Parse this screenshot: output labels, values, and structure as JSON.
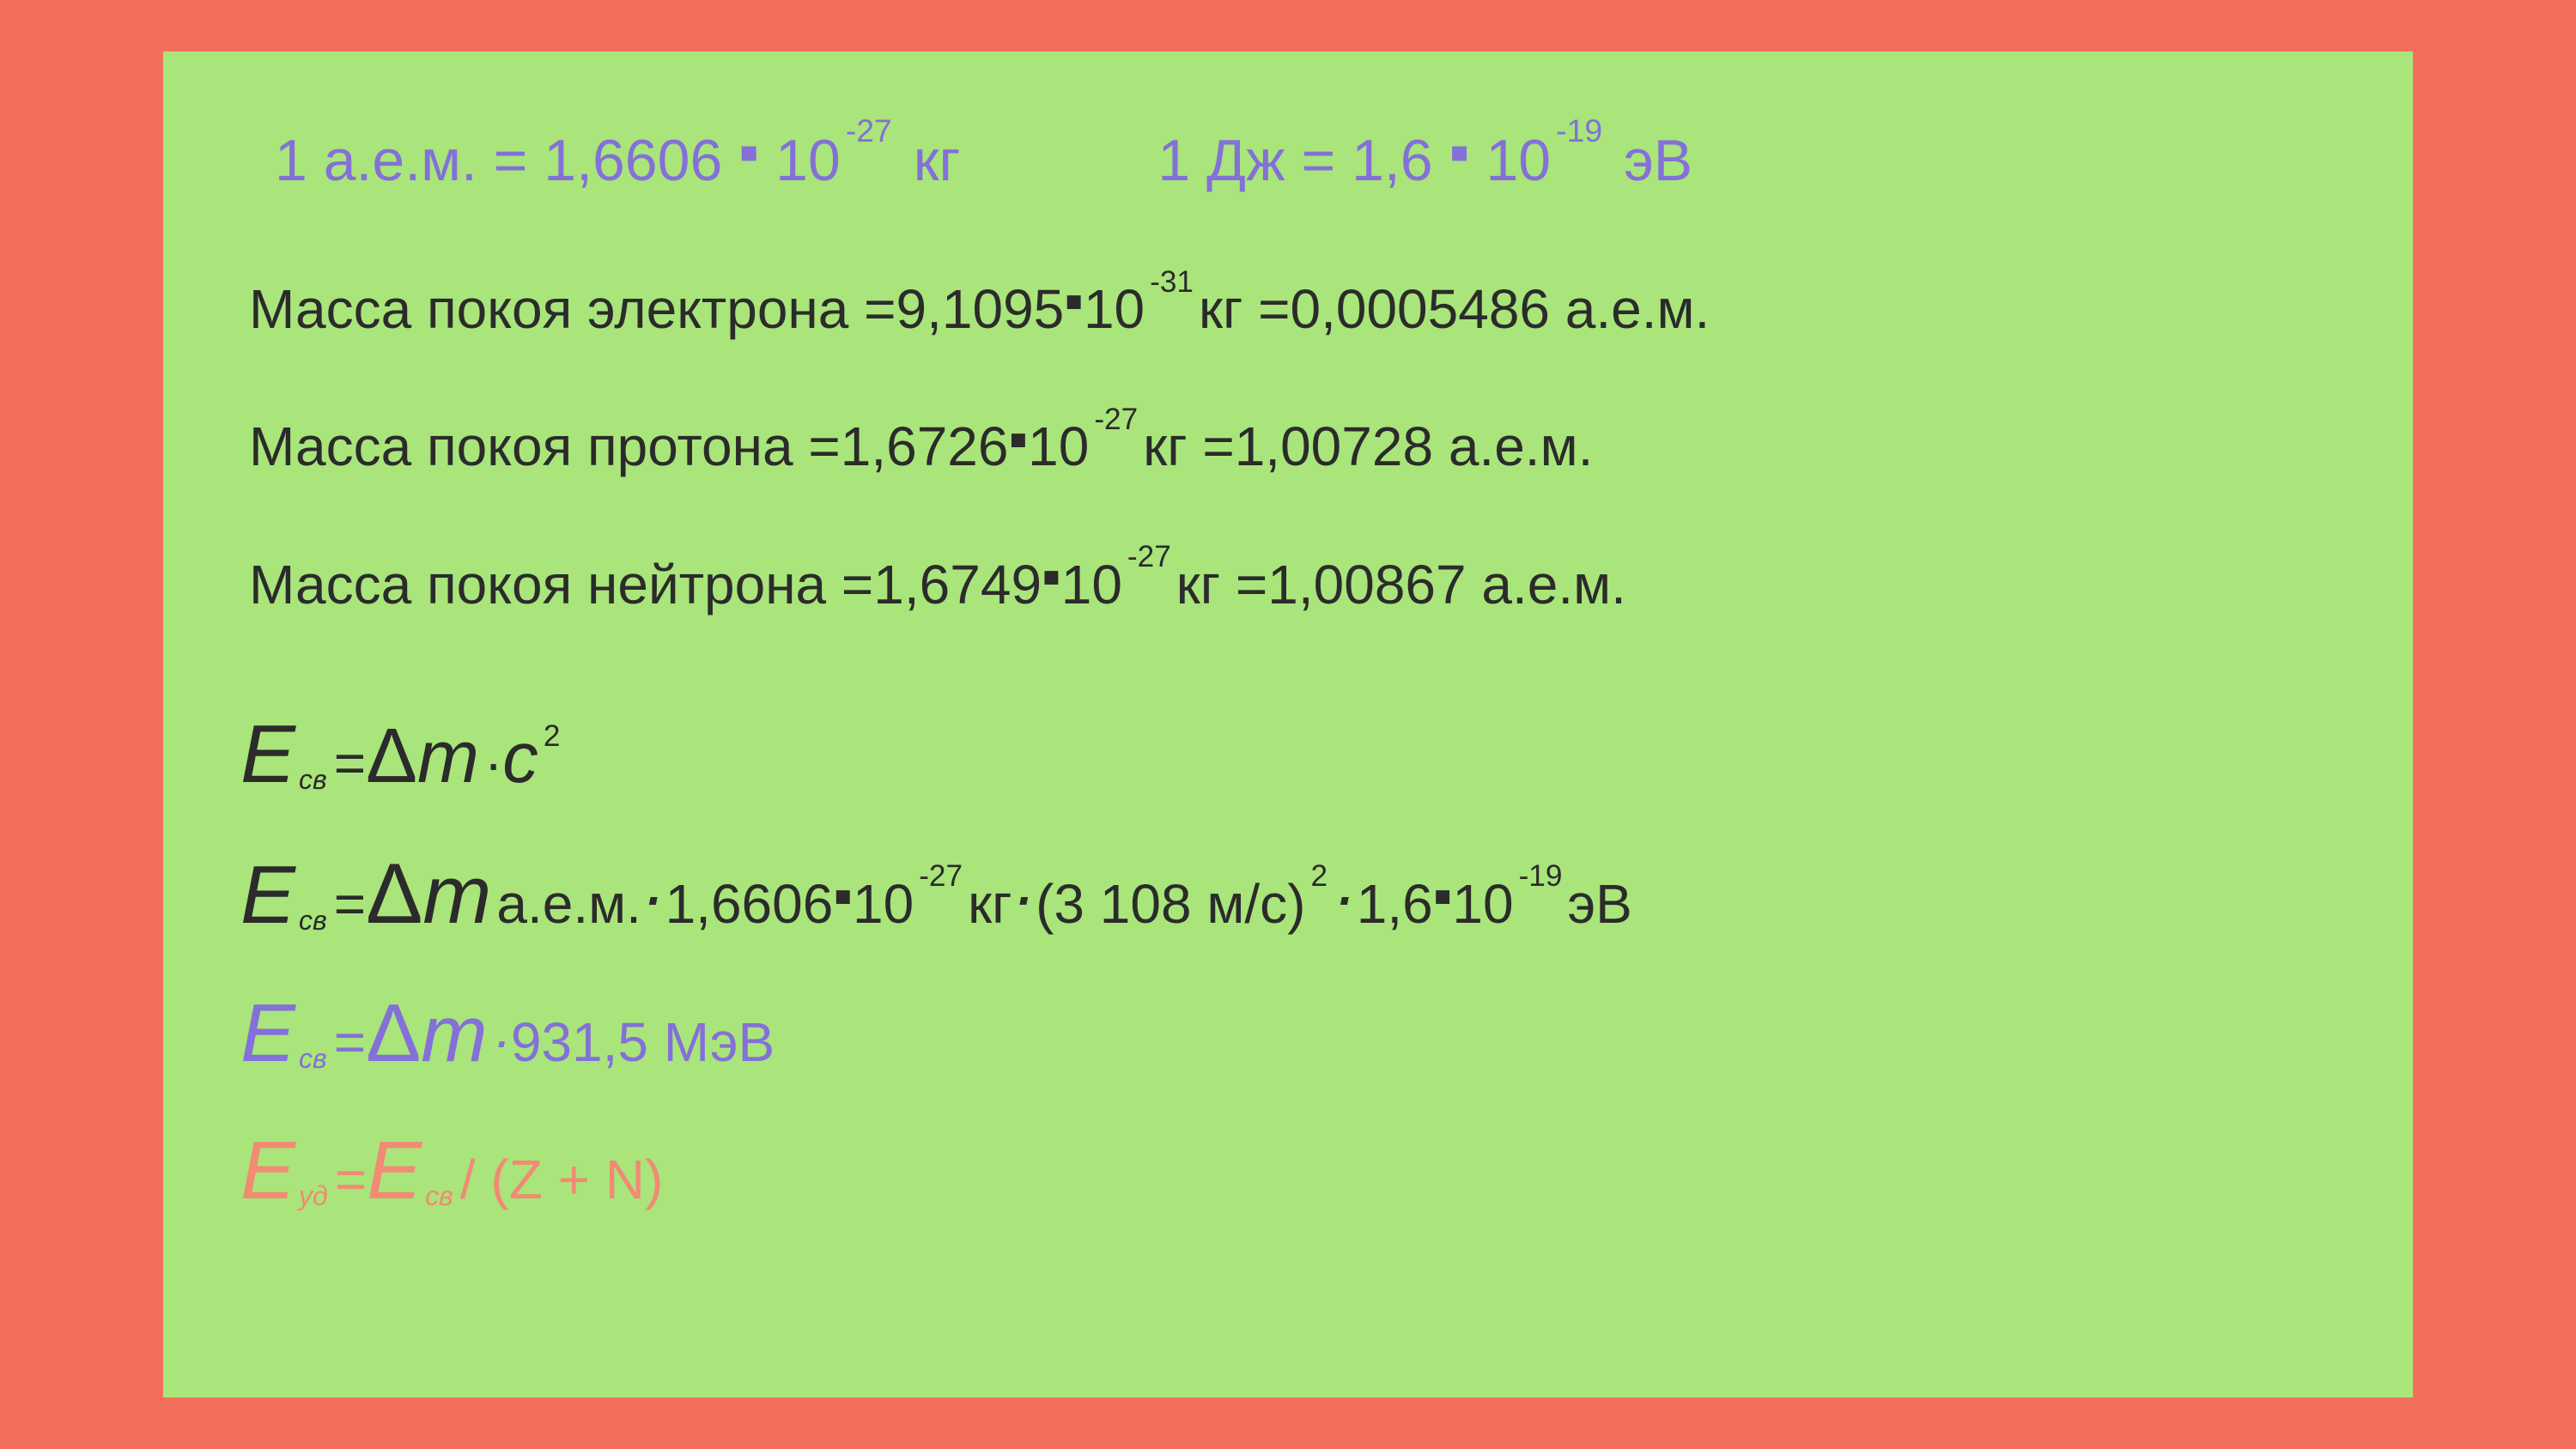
{
  "colors": {
    "outer_background": "#f26f5c",
    "panel_background": "#a9e57a",
    "text_black": "#2b2b2b",
    "text_violet": "#8470d8",
    "text_coral": "#f28a74"
  },
  "row1": {
    "left": {
      "prefix": "1 а.е.м.  = ",
      "coef": "1,6606 ",
      "dot": "▪",
      "base": " 10",
      "exp": "-27",
      "unit": " кг"
    },
    "right": {
      "prefix": "1 Дж  =  ",
      "coef": "1,6 ",
      "dot": "▪",
      "base": " 10",
      "exp": "-19",
      "unit": " эВ"
    }
  },
  "row2": {
    "label": "Масса покоя электрона  =  ",
    "coef": "9,1095 ",
    "dot": "▪",
    "base": " 10",
    "exp": "-31",
    "unit": " кг =  ",
    "amu": "0,0005486 а.е.м."
  },
  "row3": {
    "label": "Масса покоя протона   =  ",
    "coef": "1,6726 ",
    "dot": "▪",
    "base": " 10",
    "exp": "-27",
    "unit": " кг =  ",
    "amu": "1,00728 а.е.м."
  },
  "row4": {
    "label": "Масса покоя нейтрона   =  ",
    "coef": "1,6749 ",
    "dot": "▪",
    "base": " 10",
    "exp": "-27",
    "unit": " кг =  ",
    "amu": "1,00867 а.е.м."
  },
  "row5": {
    "E": "E",
    "sub": "св",
    "eq": " = ",
    "delta": "Δ",
    "m": "m ",
    "mid": "· ",
    "c": "c",
    "sup": "2"
  },
  "row6": {
    "E": "E",
    "sub": "св",
    "eq": "  =  ",
    "delta": "Δ",
    "m": "m ",
    "amu": "а.е.м. ",
    "dot1": "·",
    "coef1": "  1,6606 ",
    "sdot1": "▪",
    "base1": " 10",
    "exp1": "-27",
    "unit1": " кг ",
    "dot2": "·",
    "paren": "  (3 108 м/с)",
    "sup2": "2",
    "dot3": "·",
    "coef2": "  1,6 ",
    "sdot2": "▪",
    "base2": " 10",
    "exp2": "-19",
    "unit2": " эВ"
  },
  "row7": {
    "E": "E",
    "sub": "св",
    "eq": "  = ",
    "delta": "Δ",
    "m": "m ",
    "mid": "·",
    "val": " 931,5 МэВ"
  },
  "row8": {
    "E1": "E",
    "sub1": " уд",
    "eq": " = ",
    "E2": "E",
    "sub2": "св",
    "rest": "  / (Z + N)"
  }
}
